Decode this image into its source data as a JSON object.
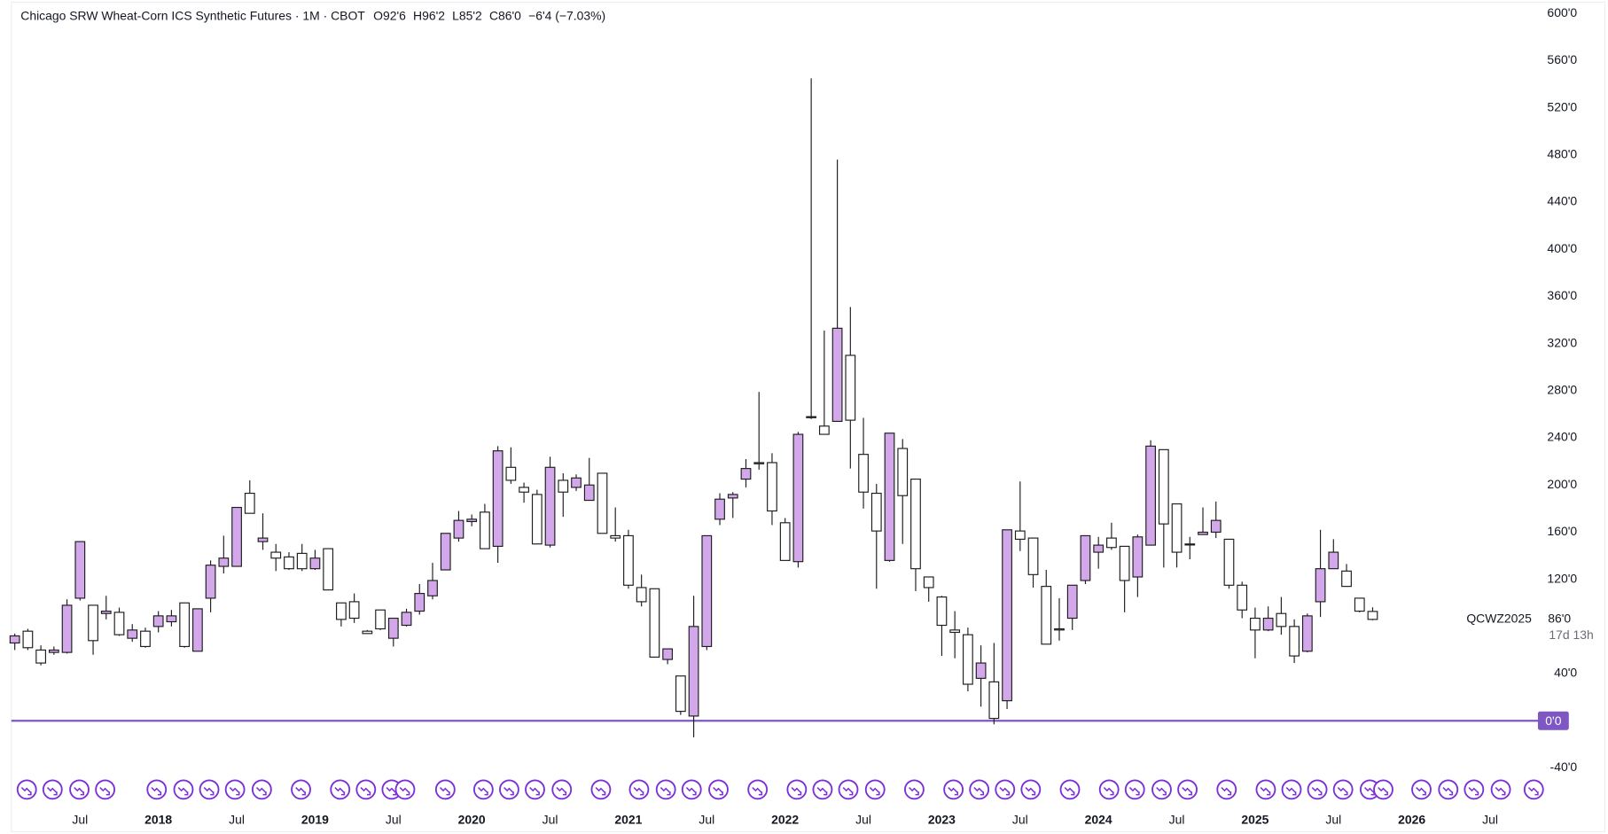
{
  "chart_data": {
    "type": "candlestick",
    "title": "Chicago SRW Wheat-Corn ICS Synthetic Futures · 1M · CBOT",
    "ohlc_text": [
      "O92'6",
      "H96'2",
      "L85'2",
      "C86'0",
      "−6'4 (−7.03%)"
    ],
    "symbol": "QCWZ2025",
    "countdown": "17d 13h",
    "last_price": {
      "value": 86,
      "label": "86'0"
    },
    "hline": {
      "value": 0,
      "label": "0'0",
      "color": "#7e57c2"
    },
    "up_color": "#d3a8ea",
    "down_color": "#ffffff",
    "border_color": "#1e1e1e",
    "ylim": [
      -40,
      600
    ],
    "yticks": [
      {
        "value": 600,
        "label": "600'0"
      },
      {
        "value": 560,
        "label": "560'0"
      },
      {
        "value": 520,
        "label": "520'0"
      },
      {
        "value": 480,
        "label": "480'0"
      },
      {
        "value": 440,
        "label": "440'0"
      },
      {
        "value": 400,
        "label": "400'0"
      },
      {
        "value": 360,
        "label": "360'0"
      },
      {
        "value": 320,
        "label": "320'0"
      },
      {
        "value": 280,
        "label": "280'0"
      },
      {
        "value": 240,
        "label": "240'0"
      },
      {
        "value": 200,
        "label": "200'0"
      },
      {
        "value": 160,
        "label": "160'0"
      },
      {
        "value": 120,
        "label": "120'0"
      },
      {
        "value": 40,
        "label": "40'0"
      },
      {
        "value": -40,
        "label": "-40'0"
      }
    ],
    "categories": [
      null,
      null,
      null,
      null,
      null,
      "Jul",
      null,
      null,
      null,
      null,
      null,
      "2018",
      null,
      null,
      null,
      null,
      null,
      "Jul",
      null,
      null,
      null,
      null,
      null,
      "2019",
      null,
      null,
      null,
      null,
      null,
      "Jul",
      null,
      null,
      null,
      null,
      null,
      "2020",
      null,
      null,
      null,
      null,
      null,
      "Jul",
      null,
      null,
      null,
      null,
      null,
      "2021",
      null,
      null,
      null,
      null,
      null,
      "Jul",
      null,
      null,
      null,
      null,
      null,
      "2022",
      null,
      null,
      null,
      null,
      null,
      "Jul",
      null,
      null,
      null,
      null,
      null,
      "2023",
      null,
      null,
      null,
      null,
      null,
      "Jul",
      null,
      null,
      null,
      null,
      null,
      "2024",
      null,
      null,
      null,
      null,
      null,
      "Jul",
      null,
      null,
      null,
      null,
      null,
      "2025",
      null,
      null,
      null,
      null,
      null,
      "Jul",
      null,
      null,
      null,
      null,
      null,
      "2026",
      null,
      null,
      null,
      null,
      null,
      "Jul",
      null,
      null,
      null
    ],
    "open": [
      66,
      76,
      60,
      58,
      58,
      104,
      98,
      91,
      92,
      70,
      76,
      80,
      84,
      100,
      59,
      104,
      131,
      131,
      193,
      152,
      143,
      139,
      142,
      129,
      146,
      100,
      101,
      76,
      94,
      70,
      81,
      93,
      106,
      128,
      155,
      169,
      177,
      148,
      215,
      198,
      192,
      149,
      204,
      198,
      187,
      210,
      157,
      157,
      113,
      112,
      52,
      38,
      4,
      63,
      171,
      189,
      205,
      218,
      219,
      168,
      135,
      258,
      250,
      254,
      310,
      226,
      193,
      136,
      231,
      205,
      122,
      105,
      77,
      73,
      36,
      33,
      17,
      161,
      155,
      114,
      77,
      87,
      119,
      143,
      155,
      148,
      122,
      149,
      230,
      184,
      150,
      158,
      160,
      154,
      115,
      87,
      77,
      91,
      80,
      59,
      101,
      129,
      127,
      104,
      92.75,
      null,
      null,
      null,
      null,
      null,
      null,
      null,
      null,
      null,
      null,
      null,
      null
    ],
    "high": [
      74,
      78,
      64,
      63,
      103,
      152,
      98,
      106,
      96,
      82,
      79,
      93,
      94,
      100,
      95,
      136,
      157,
      181,
      204,
      176,
      150,
      143,
      150,
      145,
      146,
      100,
      108,
      77,
      94,
      87,
      95,
      116,
      134,
      159,
      178,
      175,
      184,
      233,
      232,
      202,
      196,
      224,
      210,
      209,
      223,
      210,
      181,
      162,
      124,
      112,
      61,
      38,
      106,
      157,
      193,
      194,
      222,
      279,
      227,
      172,
      245,
      545,
      331,
      476,
      351,
      257,
      201,
      244,
      239,
      205,
      122,
      106,
      93,
      79,
      64,
      66,
      162,
      203,
      155,
      128,
      104,
      115,
      157,
      156,
      168,
      148,
      158,
      238,
      230,
      184,
      156,
      181,
      186,
      154,
      118,
      96,
      97,
      105,
      86,
      91,
      162,
      154,
      133,
      104,
      96.25,
      null,
      null,
      null,
      null,
      null,
      null,
      null,
      null,
      null,
      null,
      null,
      null
    ],
    "low": [
      60,
      60,
      47,
      56,
      57,
      102,
      56,
      86,
      72,
      67,
      62,
      75,
      80,
      62,
      59,
      92,
      125,
      131,
      176,
      145,
      127,
      128,
      127,
      128,
      111,
      80,
      83,
      74,
      77,
      63,
      80,
      90,
      103,
      128,
      152,
      165,
      146,
      134,
      201,
      185,
      150,
      147,
      173,
      195,
      187,
      159,
      152,
      112,
      97,
      54,
      48,
      5,
      -14,
      60,
      166,
      172,
      198,
      213,
      166,
      136,
      130,
      256,
      243,
      254,
      214,
      180,
      112,
      135,
      150,
      110,
      101,
      55,
      53,
      25,
      12,
      -3,
      10,
      144,
      113,
      65,
      68,
      77,
      116,
      129,
      145,
      92,
      105,
      149,
      130,
      130,
      137,
      158,
      155,
      112,
      87,
      53,
      76,
      73,
      49,
      58,
      88,
      129,
      114,
      92,
      85.25,
      null,
      null,
      null,
      null,
      null,
      null,
      null,
      null,
      null,
      null,
      null,
      null
    ],
    "close": [
      72,
      62,
      49,
      60,
      98,
      152,
      68,
      93,
      73,
      77,
      63,
      89,
      89,
      63,
      95,
      132,
      138,
      181,
      176,
      155,
      138,
      129,
      129,
      138,
      111,
      86,
      87,
      74,
      78,
      87,
      92,
      108,
      119,
      159,
      170,
      171,
      146,
      229,
      204,
      194,
      150,
      215,
      194,
      206,
      200,
      159,
      155,
      115,
      101,
      54,
      61,
      8,
      80,
      157,
      188,
      192,
      214,
      219,
      178,
      136,
      243,
      258,
      243,
      333,
      255,
      194,
      161,
      244,
      191,
      129,
      113,
      81,
      75,
      31,
      49,
      2,
      162,
      154,
      124,
      65,
      78,
      115,
      157,
      149,
      147,
      119,
      156,
      233,
      167,
      143,
      150,
      160,
      170,
      115,
      94,
      77,
      87,
      80,
      55,
      89,
      129,
      143,
      114,
      93,
      86,
      null,
      null,
      null,
      null,
      null,
      null,
      null,
      null,
      null,
      null,
      null,
      null
    ]
  }
}
